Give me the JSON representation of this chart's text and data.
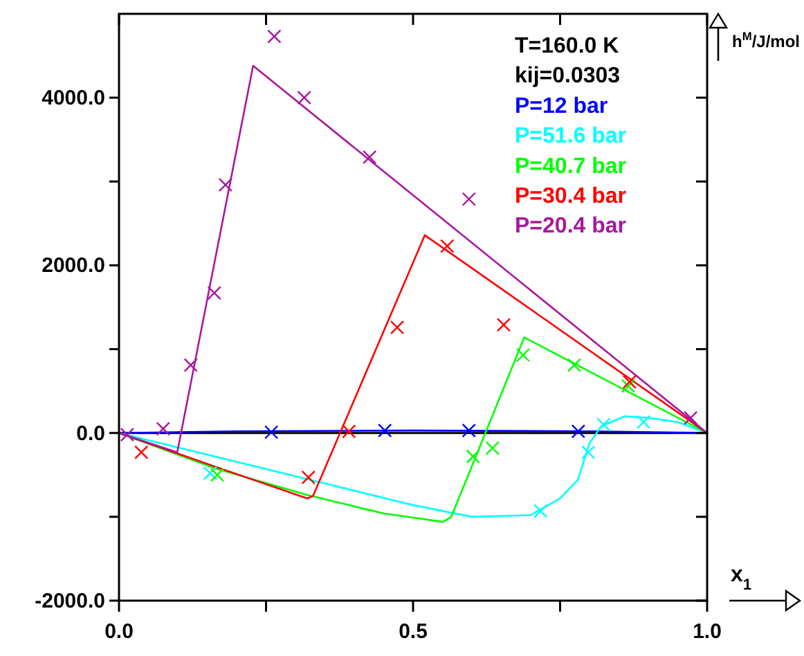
{
  "chart_data": {
    "type": "line",
    "xlabel": "x$_{1}$",
    "ylabel": "h$^{M}$/J/mol",
    "annotations": [
      "T=160.0 K",
      "kij=0.0303"
    ],
    "xlim": [
      0,
      1
    ],
    "ylim": [
      -2000,
      5000
    ],
    "xticks": [
      {
        "value": 0,
        "label": "0.0"
      },
      {
        "value": 0.25,
        "label": null
      },
      {
        "value": 0.5,
        "label": "0.5"
      },
      {
        "value": 0.75,
        "label": null
      },
      {
        "value": 1,
        "label": "1.0"
      }
    ],
    "yticks": [
      {
        "value": -2000,
        "label": "-2000.0"
      },
      {
        "value": -1000,
        "label": null
      },
      {
        "value": 0,
        "label": "0.0"
      },
      {
        "value": 1000,
        "label": null
      },
      {
        "value": 2000,
        "label": "2000.0"
      },
      {
        "value": 3000,
        "label": null
      },
      {
        "value": 4000,
        "label": "4000.0"
      }
    ],
    "ref_lines": [
      {
        "axis": "y",
        "value": 0,
        "color": "#000000"
      }
    ],
    "grid": false,
    "legend": "top right",
    "line_style": "solid",
    "series": [
      {
        "name": "P=12 bar",
        "color": "#0000ff",
        "x": [
          0,
          0.2,
          0.5,
          0.8,
          1
        ],
        "values": [
          0,
          20,
          30,
          20,
          0
        ]
      },
      {
        "name": "P=51.6 bar",
        "color": "#00ffff",
        "x": [
          0,
          0.25,
          0.5,
          0.6,
          0.7,
          0.75,
          0.78,
          0.8,
          0.82,
          0.86,
          0.9,
          0.95,
          1
        ],
        "values": [
          0,
          -430,
          -860,
          -1000,
          -980,
          -780,
          -560,
          -120,
          80,
          200,
          180,
          130,
          0
        ]
      },
      {
        "name": "P=40.7 bar",
        "color": "#00ff00",
        "x": [
          0,
          0.167,
          0.32,
          0.45,
          0.551,
          0.565,
          0.689,
          1
        ],
        "values": [
          0,
          -430,
          -740,
          -960,
          -1060,
          -1000,
          1140,
          0
        ]
      },
      {
        "name": "P=30.4 bar",
        "color": "#ff0000",
        "x": [
          0,
          0.167,
          0.32,
          0.33,
          0.52,
          1
        ],
        "values": [
          0,
          -410,
          -780,
          -750,
          2360,
          0
        ]
      },
      {
        "name": "P=20.4 bar",
        "color": "#a8189e",
        "x": [
          0,
          0.099,
          0.228,
          1
        ],
        "values": [
          0,
          -230,
          4380,
          0
        ]
      },
      {
        "type": "scatter",
        "marker": "cross",
        "color": "#0000ff",
        "x": [
          0.259,
          0.452,
          0.595,
          0.781
        ],
        "values": [
          10,
          30,
          30,
          20
        ]
      },
      {
        "type": "scatter",
        "marker": "cross",
        "color": "#00ffff",
        "x": [
          0.155,
          0.717,
          0.798,
          0.824,
          0.892
        ],
        "values": [
          -480,
          -930,
          -230,
          100,
          130
        ]
      },
      {
        "type": "scatter",
        "marker": "cross",
        "color": "#00ff00",
        "x": [
          0.167,
          0.602,
          0.635,
          0.687,
          0.774,
          0.866
        ],
        "values": [
          -500,
          -280,
          -180,
          930,
          810,
          560
        ]
      },
      {
        "type": "scatter",
        "marker": "cross",
        "color": "#ff0000",
        "x": [
          0.038,
          0.322,
          0.391,
          0.473,
          0.558,
          0.654,
          0.868
        ],
        "values": [
          -230,
          -530,
          20,
          1260,
          2230,
          1290,
          610
        ]
      },
      {
        "type": "scatter",
        "marker": "cross",
        "color": "#a8189e",
        "x": [
          0.014,
          0.075,
          0.122,
          0.162,
          0.181,
          0.264,
          0.315,
          0.426,
          0.595,
          0.972
        ],
        "values": [
          -20,
          50,
          810,
          1670,
          2960,
          4730,
          4000,
          3290,
          2790,
          180
        ]
      }
    ]
  }
}
